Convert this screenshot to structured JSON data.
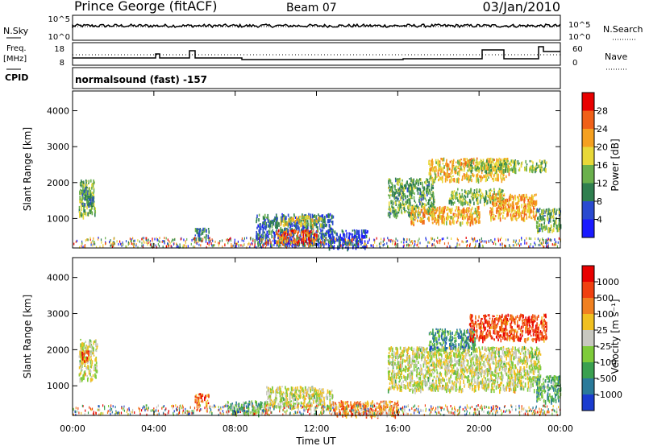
{
  "header": {
    "station": "Prince George (fitACF)",
    "beam": "Beam 07",
    "date": "03/Jan/2010"
  },
  "strip_labels": {
    "nsky": "N.Sky",
    "nsearch": "N.Search",
    "freq_line1": "Freq.",
    "freq_line2": "[MHz]",
    "cpid": "CPID",
    "nave": "Nave",
    "cpid_value": "normalsound (fast) -157",
    "left_ticks_top": [
      "10^5",
      "10^0"
    ],
    "right_ticks_top": [
      "10^5",
      "10^0"
    ],
    "left_ticks_freq": [
      "18",
      "8"
    ],
    "right_ticks_freq": [
      "60",
      "0"
    ]
  },
  "colors": {
    "frame": "#000000",
    "scatter_grey": "#bdbdbd"
  },
  "chart_data": [
    {
      "type": "heatmap",
      "name": "power",
      "ylabel": "Slant Range [km]",
      "ylim": [
        180,
        4550
      ],
      "yticks": [
        "4000",
        "3000",
        "2000",
        "1000"
      ],
      "xlabel": "",
      "colorbar": {
        "label": "Power [dB]",
        "ticks": [
          "28",
          "24",
          "20",
          "16",
          "12",
          "8",
          "4"
        ],
        "colors": [
          "#1a1aff",
          "#2a4ad0",
          "#2f7f4f",
          "#6ab04c",
          "#e8d838",
          "#f5a020",
          "#f06018",
          "#e80000"
        ]
      },
      "regions": [
        {
          "t0": 0.3,
          "t1": 1.1,
          "r0": 1100,
          "r1": 2100,
          "level": 0.45
        },
        {
          "t0": 0.4,
          "t1": 1.0,
          "r0": 1400,
          "r1": 1900,
          "level": 0.3
        },
        {
          "t0": 6.0,
          "t1": 6.7,
          "r0": 450,
          "r1": 750,
          "level": 0.3
        },
        {
          "t0": 9.0,
          "t1": 12.8,
          "r0": 300,
          "r1": 1150,
          "level": 0.25
        },
        {
          "t0": 10.0,
          "t1": 12.0,
          "r0": 350,
          "r1": 700,
          "level": 0.85
        },
        {
          "t0": 10.2,
          "t1": 12.3,
          "r0": 850,
          "r1": 1100,
          "level": 0.55
        },
        {
          "t0": 12.6,
          "t1": 14.5,
          "r0": 200,
          "r1": 700,
          "level": 0.15
        },
        {
          "t0": 15.5,
          "t1": 17.8,
          "r0": 1100,
          "r1": 2150,
          "level": 0.4
        },
        {
          "t0": 16.6,
          "t1": 20.0,
          "r0": 900,
          "r1": 1350,
          "level": 0.65
        },
        {
          "t0": 17.5,
          "t1": 21.5,
          "r0": 2100,
          "r1": 2700,
          "level": 0.62
        },
        {
          "t0": 18.5,
          "t1": 21.2,
          "r0": 1450,
          "r1": 1850,
          "level": 0.45
        },
        {
          "t0": 20.5,
          "t1": 22.8,
          "r0": 1000,
          "r1": 1700,
          "level": 0.7
        },
        {
          "t0": 22.8,
          "t1": 24.0,
          "r0": 700,
          "r1": 1300,
          "level": 0.4
        },
        {
          "t0": 19.5,
          "t1": 23.3,
          "r0": 2350,
          "r1": 2650,
          "level": 0.45
        }
      ]
    },
    {
      "type": "heatmap",
      "name": "velocity",
      "ylabel": "Slant Range [km]",
      "ylim": [
        180,
        4550
      ],
      "yticks": [
        "4000",
        "3000",
        "2000",
        "1000"
      ],
      "xlabel": "Time UT",
      "xticks": [
        "00:00",
        "04:00",
        "08:00",
        "12:00",
        "16:00",
        "20:00",
        "00:00"
      ],
      "colorbar": {
        "label": "Velocity [m s⁻¹]",
        "ticks": [
          "1000",
          "500",
          "100",
          "25",
          "-25",
          "-100",
          "-500",
          "-1000"
        ],
        "colors": [
          "#1a3ccf",
          "#2a7a9a",
          "#3aa050",
          "#7ecb3a",
          "#c8c8c0",
          "#f0c020",
          "#f08020",
          "#f04010",
          "#e80000"
        ]
      },
      "regions": [
        {
          "t0": 0.3,
          "t1": 1.2,
          "r0": 1200,
          "r1": 2300,
          "level": 0.5
        },
        {
          "t0": 0.4,
          "t1": 0.8,
          "r0": 1700,
          "r1": 2000,
          "level": 0.75
        },
        {
          "t0": 6.0,
          "t1": 6.7,
          "r0": 500,
          "r1": 800,
          "level": 0.75
        },
        {
          "t0": 9.5,
          "t1": 12.8,
          "r0": 400,
          "r1": 1000,
          "level": 0.5
        },
        {
          "t0": 7.5,
          "t1": 9.5,
          "r0": 250,
          "r1": 600,
          "level": 0.35
        },
        {
          "t0": 12.8,
          "t1": 16.0,
          "r0": 200,
          "r1": 600,
          "level": 0.7
        },
        {
          "t0": 15.5,
          "t1": 23.0,
          "r0": 900,
          "r1": 2100,
          "level": 0.5
        },
        {
          "t0": 17.5,
          "t1": 19.8,
          "r0": 2050,
          "r1": 2600,
          "level": 0.25
        },
        {
          "t0": 19.5,
          "t1": 23.3,
          "r0": 2300,
          "r1": 3000,
          "level": 0.82
        },
        {
          "t0": 22.8,
          "t1": 24.0,
          "r0": 600,
          "r1": 1300,
          "level": 0.3
        }
      ]
    }
  ]
}
